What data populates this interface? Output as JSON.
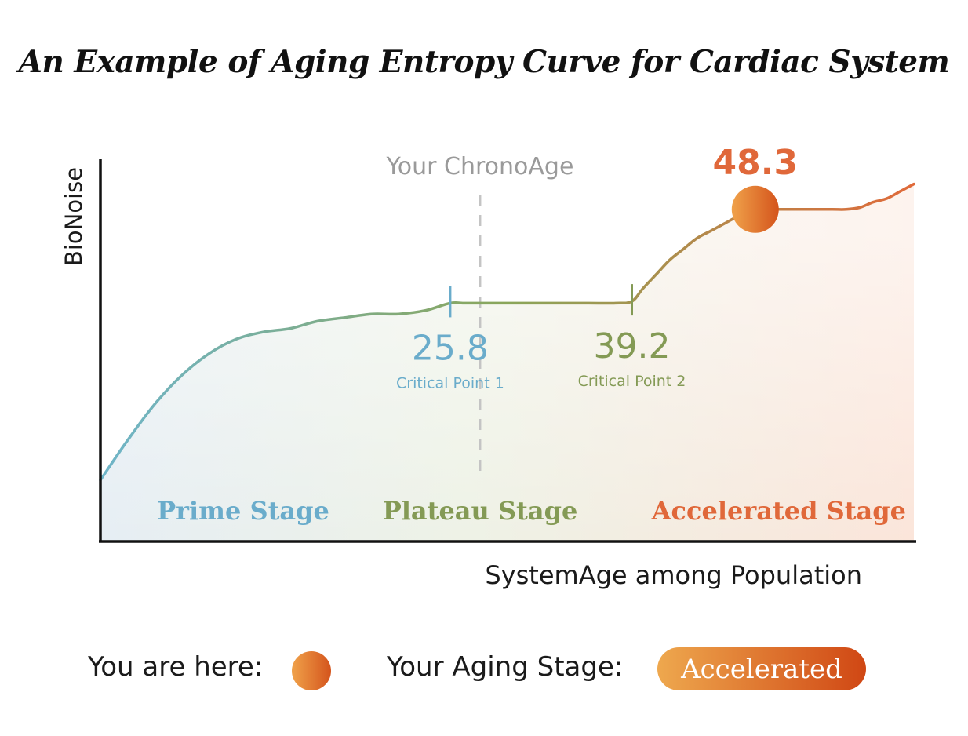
{
  "title": "An Example of Aging Entropy Curve for Cardiac System",
  "chart_data": {
    "type": "area",
    "ylabel": "BioNoise",
    "xlabel": "SystemAge among Population",
    "x_range": [
      0,
      60
    ],
    "y_range": [
      0,
      100
    ],
    "grid": false,
    "curve": {
      "x": [
        0,
        2,
        4,
        6,
        8,
        10,
        12,
        14,
        16,
        18,
        20,
        22,
        24,
        25.8,
        27,
        30,
        33,
        36,
        38,
        39.2,
        40,
        41,
        42,
        43,
        44,
        45,
        46,
        47,
        48.3,
        50,
        52,
        54,
        55,
        56,
        57,
        58,
        59,
        60
      ],
      "y": [
        17,
        28,
        38,
        46,
        52,
        56,
        58,
        59,
        61,
        62,
        63,
        63,
        64,
        66,
        66,
        66,
        66,
        66,
        66,
        66.5,
        70,
        74,
        78,
        81,
        84,
        86,
        88,
        90,
        92,
        92,
        92,
        92,
        92,
        92.5,
        94,
        95,
        97,
        99
      ]
    },
    "chrono_age": {
      "label": "Your ChronoAge",
      "x": 28
    },
    "critical_points": [
      {
        "x": 25.8,
        "value": "25.8",
        "label": "Critical Point 1",
        "color": "#6aaccb"
      },
      {
        "x": 39.2,
        "value": "39.2",
        "label": "Critical Point 2",
        "color": "#849a55"
      }
    ],
    "current": {
      "x": 48.3,
      "value": "48.3",
      "color": "#e0683a"
    },
    "stages": [
      {
        "name": "Prime Stage",
        "color": "#6aaccb"
      },
      {
        "name": "Plateau Stage",
        "color": "#849a55"
      },
      {
        "name": "Accelerated Stage",
        "color": "#e0683a"
      }
    ],
    "line_colors": [
      "#6fb5c9",
      "#8aa65a",
      "#e06a3a"
    ],
    "fill_colors": [
      "#e6eef4",
      "#eef2e6",
      "#fbe5da"
    ]
  },
  "legend": {
    "you_are_here_label": "You are here:",
    "aging_stage_label": "Your Aging Stage:",
    "aging_stage_value": "Accelerated"
  }
}
